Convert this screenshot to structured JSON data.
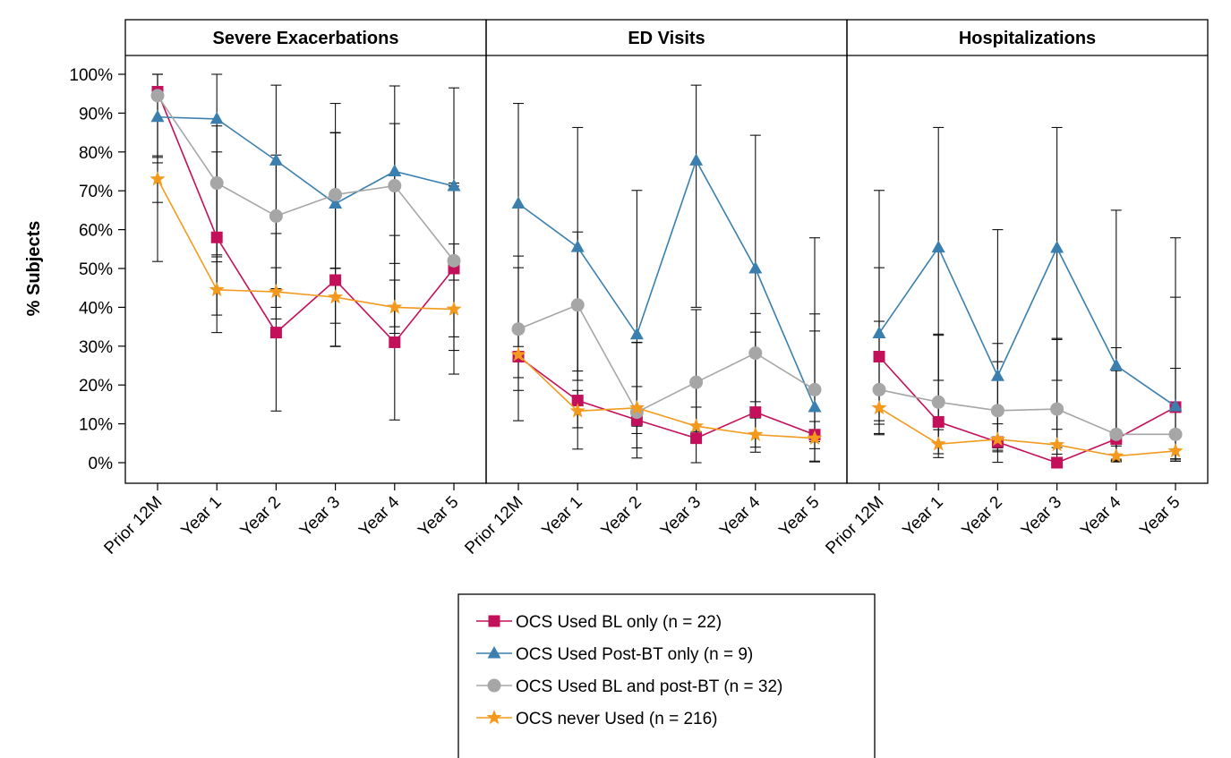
{
  "chart_data": {
    "type": "line",
    "ylabel": "% Subjects",
    "ylim": [
      0,
      100
    ],
    "y_ticks": [
      "0%",
      "10%",
      "20%",
      "30%",
      "40%",
      "50%",
      "60%",
      "70%",
      "80%",
      "90%",
      "100%"
    ],
    "categories": [
      "Prior 12M",
      "Year 1",
      "Year 2",
      "Year 3",
      "Year 4",
      "Year 5"
    ],
    "grid": false,
    "legend_position": "bottom-center",
    "series_styles": [
      {
        "color": "#c3105a",
        "marker": "square"
      },
      {
        "color": "#3a7fad",
        "marker": "triangle"
      },
      {
        "color": "#a6a6a6",
        "marker": "circle"
      },
      {
        "color": "#f39a1e",
        "marker": "star"
      }
    ],
    "legend": [
      "OCS Used BL only (n = 22)",
      "OCS Used Post-BT only (n = 9)",
      "OCS Used BL and post-BT (n = 32)",
      "OCS never Used (n = 216)"
    ],
    "panels": [
      {
        "title": "Severe Exacerbations",
        "series": [
          {
            "values": [
              95.5,
              58,
              33.5,
              47,
              31,
              50
            ],
            "err_low": [
              79,
              38,
              13.3,
              30,
              11,
              28.9
            ],
            "err_high": [
              100,
              80,
              59,
              85,
              58.5,
              72
            ]
          },
          {
            "values": [
              89,
              88.5,
              77.8,
              66.7,
              75,
              71.2
            ],
            "err_low": [
              51.8,
              51.7,
              40,
              29.9,
              35,
              47
            ],
            "err_high": [
              100,
              100,
              97.2,
              92.5,
              97,
              96.5
            ]
          },
          {
            "values": [
              94.5,
              72,
              63.5,
              69,
              71.3,
              52
            ],
            "err_low": [
              77.2,
              53.5,
              44.8,
              50,
              51.3,
              32.4
            ],
            "err_high": [
              100,
              86.7,
              79.2,
              84.9,
              87.3,
              71.2
            ]
          },
          {
            "values": [
              73,
              44.5,
              44,
              42.6,
              40,
              39.5
            ],
            "err_low": [
              67,
              33.5,
              37,
              35.9,
              33.3,
              22.8
            ],
            "err_high": [
              78.6,
              53,
              50.2,
              50.1,
              47,
              56.3
            ]
          }
        ]
      },
      {
        "title": "ED Visits",
        "series": [
          {
            "values": [
              27.3,
              16,
              11,
              6.3,
              13,
              7.2
            ],
            "err_low": [
              10.8,
              3.5,
              1.2,
              0,
              2.7,
              0.2
            ],
            "err_high": [
              50.2,
              40.5,
              31,
              20.9,
              33.6,
              33.9
            ]
          },
          {
            "values": [
              66.7,
              55.5,
              33,
              77.8,
              50,
              14.3
            ],
            "err_low": [
              29.9,
              21.2,
              7.5,
              40,
              15.7,
              0.4
            ],
            "err_high": [
              92.5,
              86.3,
              70.1,
              97.2,
              84.3,
              57.9
            ]
          },
          {
            "values": [
              34.4,
              40.6,
              13,
              20.7,
              28.2,
              18.8
            ],
            "err_low": [
              18.6,
              23.6,
              3.8,
              8,
              13.7,
              5.4
            ],
            "err_high": [
              53.2,
              59.4,
              30.9,
              39.4,
              38.4,
              38.3
            ]
          },
          {
            "values": [
              27.8,
              13.3,
              14.1,
              9.4,
              7.2,
              6.3
            ],
            "err_low": [
              21.9,
              9,
              9.4,
              5.7,
              4,
              3.6
            ],
            "err_high": [
              33.9,
              18.6,
              19.6,
              14.3,
              11.5,
              10.6
            ]
          }
        ]
      },
      {
        "title": "Hospitalizations",
        "series": [
          {
            "values": [
              27.3,
              10.5,
              5.3,
              0,
              6.1,
              14.3
            ],
            "err_low": [
              10.8,
              1.3,
              0.1,
              0,
              0.2,
              0.4
            ],
            "err_high": [
              50.2,
              33.1,
              26,
              32,
              29.6,
              42.6
            ]
          },
          {
            "values": [
              33.3,
              55.4,
              22.3,
              55.3,
              25,
              14.5
            ],
            "err_low": [
              7.5,
              21.2,
              2.8,
              21.2,
              0.6,
              0.4
            ],
            "err_high": [
              70.1,
              86.3,
              60,
              86.3,
              65,
              57.9
            ]
          },
          {
            "values": [
              18.8,
              15.6,
              13.4,
              13.8,
              7.3,
              7.3
            ],
            "err_low": [
              7.2,
              5.3,
              3.8,
              3.9,
              0.9,
              0.9
            ],
            "err_high": [
              36.4,
              32.8,
              30.7,
              31.7,
              23.7,
              24.3
            ]
          },
          {
            "values": [
              14.1,
              4.8,
              6,
              4.6,
              1.7,
              3
            ],
            "err_low": [
              9.9,
              2.3,
              3.2,
              2.2,
              0.4,
              1
            ],
            "err_high": [
              19.3,
              8.5,
              10,
              8.6,
              4.3,
              6.9
            ]
          }
        ]
      }
    ]
  }
}
